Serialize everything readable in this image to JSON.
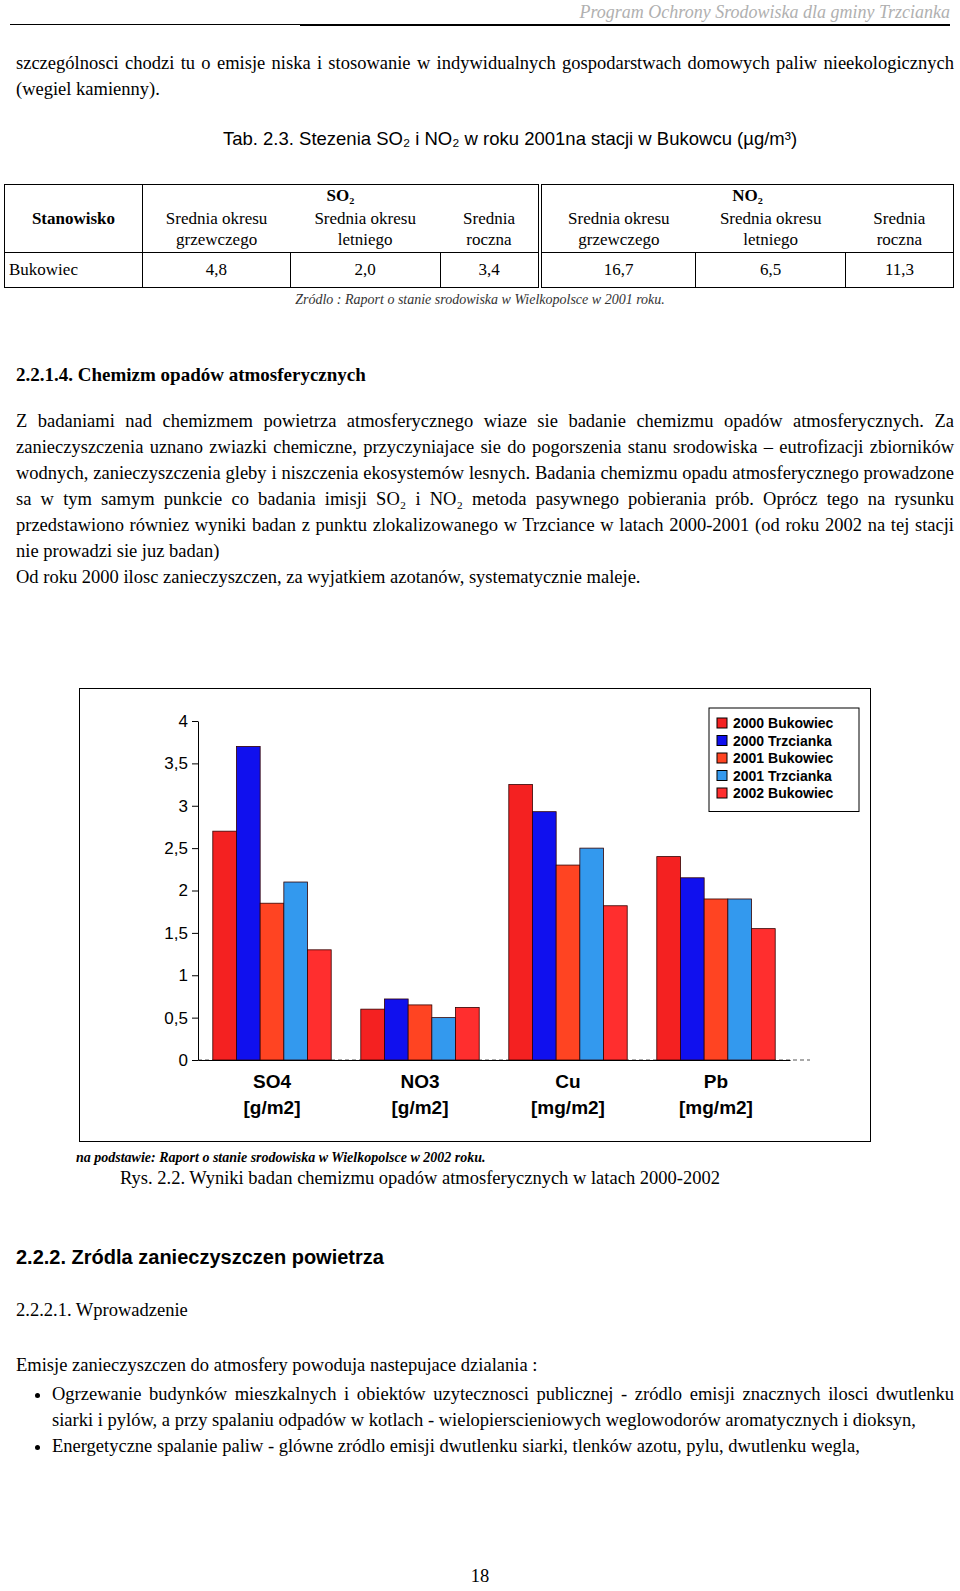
{
  "header": {
    "running_title": "Program Ochrony Srodowiska dla gminy Trzcianka"
  },
  "intro_paragraph": "szczególnosci chodzi tu o emisje niska i stosowanie w indywidualnych gospodarstwach domowych paliw nieekologicznych (wegiel kamienny).",
  "table": {
    "caption": "Tab. 2.3. Stezenia SO₂ i NO₂ w roku 2001na stacji w Bukowcu (µg/m³)",
    "header_groups": [
      "Stanowisko",
      "SO₂",
      "NO₂"
    ],
    "subheaders": [
      "Srednia okresu grzewczego",
      "Srednia okresu letniego",
      "Srednia roczna",
      "Srednia okresu grzewczego",
      "Srednia okresu letniego",
      "Srednia roczna"
    ],
    "rows": [
      [
        "Bukowiec",
        "4,8",
        "2,0",
        "3,4",
        "16,7",
        "6,5",
        "11,3"
      ]
    ],
    "source": "Zródlo : Raport o stanie srodowiska w Wielkopolsce w 2001 roku."
  },
  "section": {
    "heading": "2.2.1.4. Chemizm opadów atmosferycznych",
    "paragraphs": [
      "Z badaniami nad chemizmem powietrza atmosferycznego wiaze sie badanie chemizmu opadów atmosferycznych. Za zanieczyszczenia uznano zwiazki chemiczne, przyczyniajace sie do pogorszenia stanu srodowiska – eutrofizacji zbiorników wodnych, zanieczyszczenia gleby i niszczenia ekosystemów lesnych. Badania chemizmu opadu atmosferycznego prowadzone sa w tym samym punkcie co badania imisji SO₂ i NO₂ metoda pasywnego pobierania prób. Oprócz tego na rysunku przedstawiono równiez wyniki badan z punktu zlokalizowanego w Trzciance w latach 2000-2001 (od roku 2002 na tej stacji nie prowadzi sie juz badan)",
      "Od roku 2000 ilosc zanieczyszczen, za wyjatkiem azotanów, systematycznie maleje."
    ]
  },
  "chart_data": {
    "type": "bar",
    "categories": [
      "SO4 [g/m2]",
      "NO3 [g/m2]",
      "Cu [mg/m2]",
      "Pb [mg/m2]"
    ],
    "series": [
      {
        "name": "2000 Bukowiec",
        "color": "#f42121",
        "values": [
          2.7,
          0.6,
          3.25,
          2.4
        ]
      },
      {
        "name": "2000 Trzcianka",
        "color": "#1010ee",
        "values": [
          3.7,
          0.72,
          2.93,
          2.15
        ]
      },
      {
        "name": "2001 Bukowiec",
        "color": "#ff4422",
        "values": [
          1.85,
          0.65,
          2.3,
          1.9
        ]
      },
      {
        "name": "2001 Trzcianka",
        "color": "#3399ee",
        "values": [
          2.1,
          0.5,
          2.5,
          1.9
        ]
      },
      {
        "name": "2002 Bukowiec",
        "color": "#ff2e2e",
        "values": [
          1.3,
          0.62,
          1.82,
          1.55
        ]
      }
    ],
    "ylim": [
      0,
      4
    ],
    "yticks": [
      0,
      {
        "value": 0.5,
        "label": "0,5"
      },
      1,
      {
        "value": 1.5,
        "label": "1,5"
      },
      2,
      {
        "value": 2.5,
        "label": "2,5"
      },
      3,
      {
        "value": 3.5,
        "label": "3,5"
      },
      4
    ],
    "grid": false,
    "legend": "upper right"
  },
  "figure": {
    "source": "na podstawie: Raport o stanie srodowiska w Wielkopolsce w 2002 roku.",
    "caption": "Rys. 2.2. Wyniki badan chemizmu opadów atmosferycznych w latach 2000-2002"
  },
  "section2": {
    "heading": "2.2.2. Zródla zanieczyszczen powietrza",
    "subheading": "2.2.2.1. Wprowadzenie",
    "intro": "Emisje zanieczyszczen do atmosfery powoduja nastepujace dzialania :",
    "bullets": [
      "Ogrzewanie budynków mieszkalnych i obiektów uzytecznosci publicznej - zródlo emisji znacznych ilosci dwutlenku siarki i pylów, a przy spalaniu odpadów w kotlach - wielopierscieniowych weglowodorów aromatycznych i dioksyn,",
      "Energetyczne spalanie paliw - glówne zródlo emisji dwutlenku siarki, tlenków azotu, pylu, dwutlenku wegla,"
    ]
  },
  "page_number": "18"
}
